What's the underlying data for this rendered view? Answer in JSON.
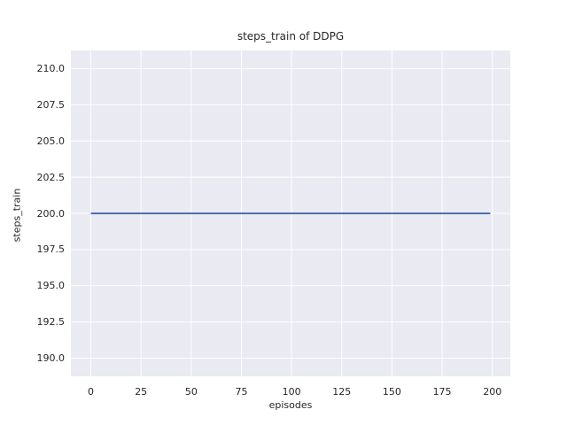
{
  "chart_data": {
    "type": "line",
    "title": "steps_train of DDPG",
    "xlabel": "episodes",
    "ylabel": "steps_train",
    "xlim": [
      -9.95,
      208.95
    ],
    "ylim": [
      188.75,
      211.25
    ],
    "x_ticks": [
      0,
      25,
      50,
      75,
      100,
      125,
      150,
      175,
      200
    ],
    "x_tick_labels": [
      "0",
      "25",
      "50",
      "75",
      "100",
      "125",
      "150",
      "175",
      "200"
    ],
    "y_ticks": [
      190.0,
      192.5,
      195.0,
      197.5,
      200.0,
      202.5,
      205.0,
      207.5,
      210.0
    ],
    "y_tick_labels": [
      "190.0",
      "192.5",
      "195.0",
      "197.5",
      "200.0",
      "202.5",
      "205.0",
      "207.5",
      "210.0"
    ],
    "grid": true,
    "legend": false,
    "series": [
      {
        "name": "steps_train",
        "x": [
          0,
          199
        ],
        "y": [
          200,
          200
        ],
        "color": "#4c72b0",
        "line_width": 2
      }
    ],
    "colors": {
      "figure_background": "#ffffff",
      "plot_background": "#eaeaf2",
      "gridline": "#ffffff",
      "text": "#262626",
      "line": "#4c72b0"
    }
  }
}
